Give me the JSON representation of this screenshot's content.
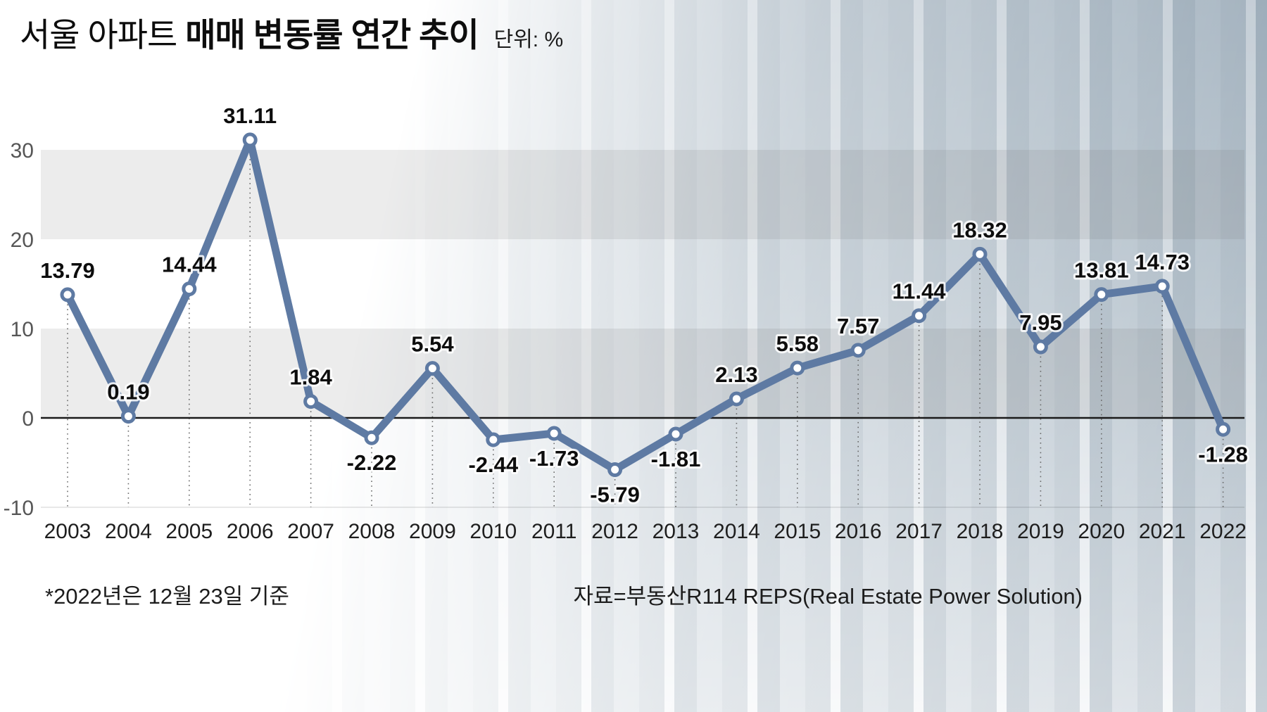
{
  "title": {
    "regular": "서울 아파트",
    "bold": "매매 변동률 연간 추이",
    "unit": "단위: %"
  },
  "footnote": "*2022년은 12월 23일 기준",
  "source": "자료=부동산R114 REPS(Real Estate Power Solution)",
  "chart_data": {
    "type": "line",
    "title": "서울 아파트 매매 변동률 연간 추이",
    "unit": "%",
    "categories": [
      "2003",
      "2004",
      "2005",
      "2006",
      "2007",
      "2008",
      "2009",
      "2010",
      "2011",
      "2012",
      "2013",
      "2014",
      "2015",
      "2016",
      "2017",
      "2018",
      "2019",
      "2020",
      "2021",
      "2022"
    ],
    "values": [
      13.79,
      0.19,
      14.44,
      31.11,
      1.84,
      -2.22,
      5.54,
      -2.44,
      -1.73,
      -5.79,
      -1.81,
      2.13,
      5.58,
      7.57,
      11.44,
      18.32,
      7.95,
      13.81,
      14.73,
      -1.28
    ],
    "yticks": [
      30,
      20,
      10,
      0,
      -10
    ],
    "ylim": [
      -10,
      33
    ],
    "gray_bands": [
      [
        20,
        30
      ],
      [
        0,
        10
      ]
    ],
    "line_color": "#5e7aa3",
    "marker_fill": "#ffffff",
    "zero_line_color": "#1a1a1a",
    "grid": "horizontal-bands",
    "legend": "none",
    "xlabel": "",
    "ylabel": ""
  }
}
